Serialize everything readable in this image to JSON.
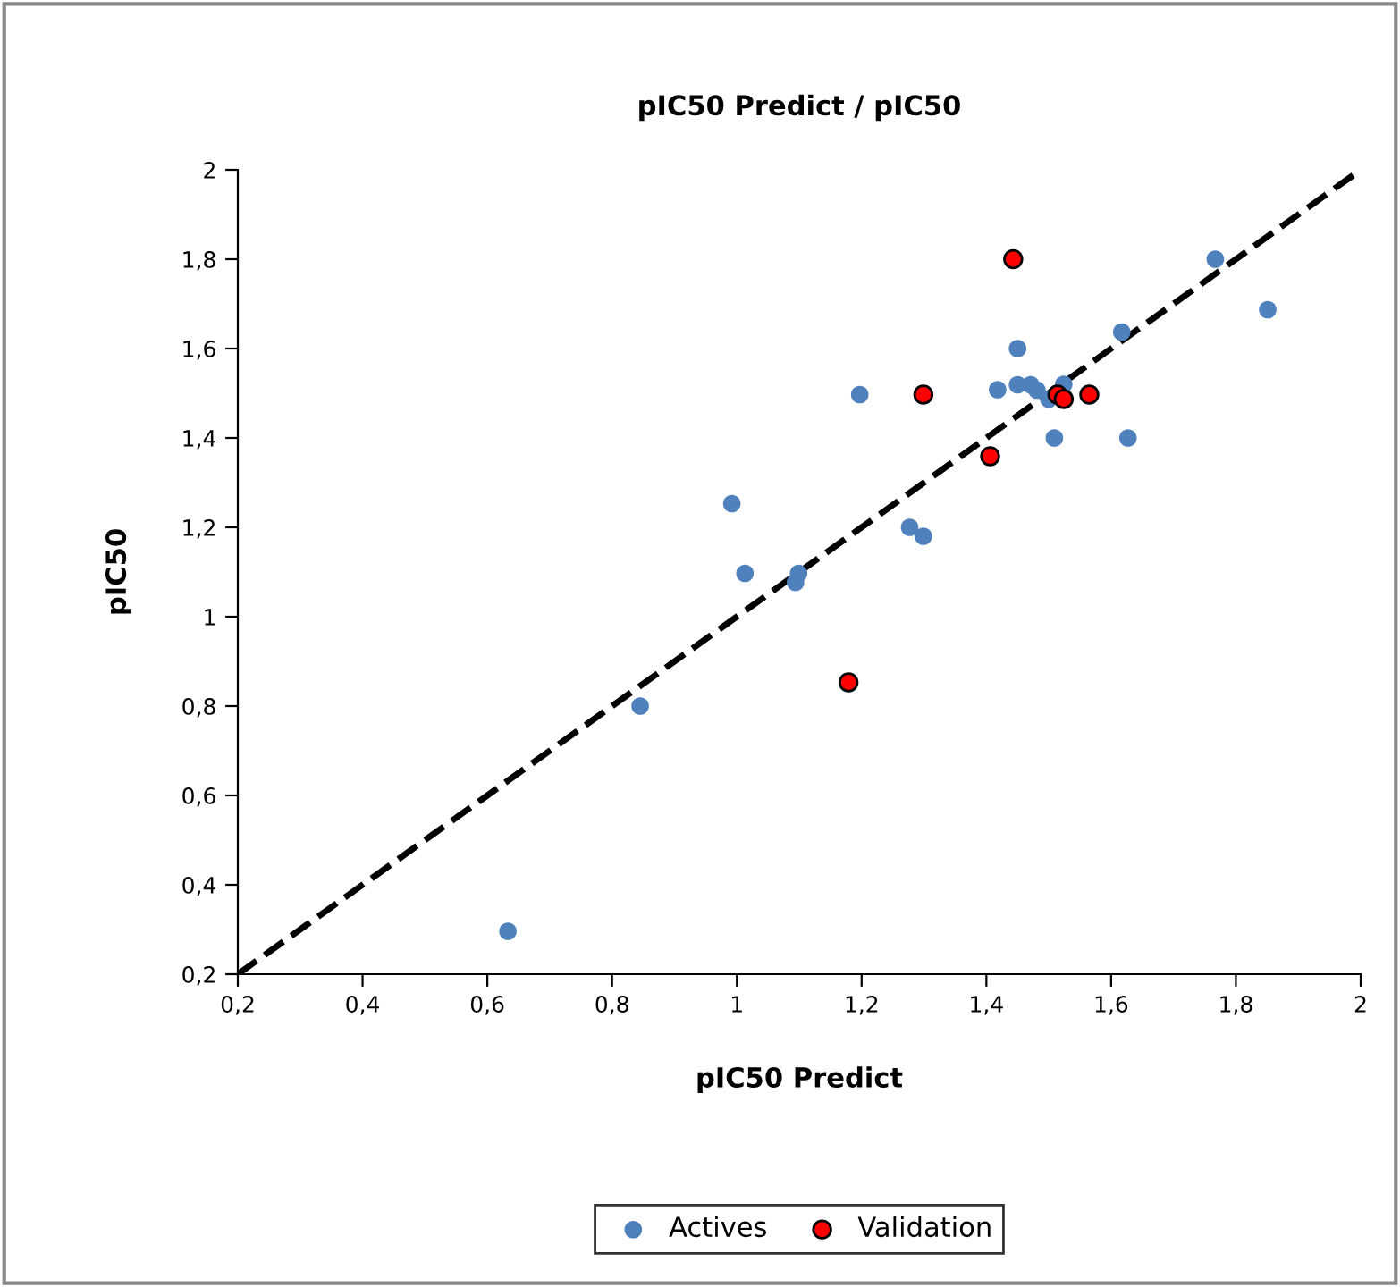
{
  "chart_data": {
    "type": "scatter",
    "title": "pIC50 Predict / pIC50",
    "xlabel": "pIC50 Predict",
    "ylabel": "pIC50",
    "series": [
      {
        "name": "Actives",
        "color": "#4f81bd",
        "x": [
          0.633,
          0.845,
          0.992,
          1.013,
          1.099,
          1.094,
          1.197,
          1.277,
          1.299,
          1.418,
          1.45,
          1.45,
          1.471,
          1.481,
          1.5,
          1.524,
          1.509,
          1.617,
          1.627,
          1.767,
          1.851
        ],
        "values": [
          0.296,
          0.8,
          1.253,
          1.097,
          1.097,
          1.077,
          1.497,
          1.2,
          1.18,
          1.508,
          1.6,
          1.519,
          1.519,
          1.507,
          1.487,
          1.52,
          1.4,
          1.637,
          1.4,
          1.8,
          1.687
        ]
      },
      {
        "name": "Validation",
        "color": "#ff0000",
        "x": [
          1.179,
          1.299,
          1.406,
          1.443,
          1.514,
          1.524,
          1.565
        ],
        "values": [
          0.853,
          1.497,
          1.359,
          1.8,
          1.497,
          1.487,
          1.497
        ]
      },
      {
        "type": "line",
        "color": "#000000",
        "line_style": "dashed",
        "marker": "none",
        "x": [
          0.2,
          2
        ],
        "values": [
          0.2,
          2
        ]
      }
    ],
    "xlim": [
      0.2,
      2
    ],
    "ylim": [
      0.2,
      2
    ],
    "xticks": [
      {
        "value": 0.2,
        "label": "0,2"
      },
      {
        "value": 0.4,
        "label": "0,4"
      },
      {
        "value": 0.6,
        "label": "0,6"
      },
      {
        "value": 0.8,
        "label": "0,8"
      },
      1,
      {
        "value": 1.2,
        "label": "1,2"
      },
      {
        "value": 1.4,
        "label": "1,4"
      },
      {
        "value": 1.6,
        "label": "1,6"
      },
      {
        "value": 1.8,
        "label": "1,8"
      },
      2
    ],
    "yticks": [
      {
        "value": 0.2,
        "label": "0,2"
      },
      {
        "value": 0.4,
        "label": "0,4"
      },
      {
        "value": 0.6,
        "label": "0,6"
      },
      {
        "value": 0.8,
        "label": "0,8"
      },
      1,
      {
        "value": 1.2,
        "label": "1,2"
      },
      {
        "value": 1.4,
        "label": "1,4"
      },
      {
        "value": 1.6,
        "label": "1,6"
      },
      {
        "value": 1.8,
        "label": "1,8"
      },
      2
    ],
    "marker": "circle",
    "legend": "bottom",
    "grid": false
  }
}
